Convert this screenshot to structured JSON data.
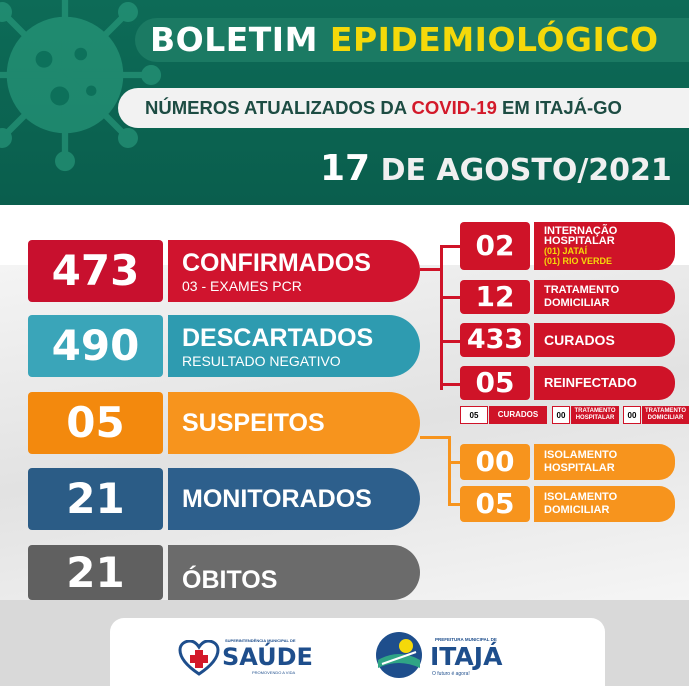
{
  "header": {
    "title_white": "BOLETIM",
    "title_yellow": "EPIDEMIOLÓGICO",
    "subtitle_pre": "NÚMEROS ATUALIZADOS DA",
    "subtitle_red": "COVID-19",
    "subtitle_post": "EM ITAJÁ-GO",
    "date_day": "17",
    "date_rest": "DE AGOSTO/2021"
  },
  "stats": {
    "confirmados": {
      "value": "473",
      "label": "CONFIRMADOS",
      "sub": "03 - EXAMES PCR"
    },
    "descartados": {
      "value": "490",
      "label": "DESCARTADOS",
      "sub": "RESULTADO NEGATIVO"
    },
    "suspeitos": {
      "value": "05",
      "label": "SUSPEITOS"
    },
    "monitorados": {
      "value": "21",
      "label": "MONITORADOS"
    },
    "obitos": {
      "value": "21",
      "label": "ÓBITOS"
    }
  },
  "confirmed_details": {
    "internacao": {
      "value": "02",
      "label1": "INTERNAÇÃO",
      "label2": "HOSPITALAR",
      "note1": "(01) JATAÍ",
      "note2": "(01) RIO VERDE"
    },
    "tratamento": {
      "value": "12",
      "label1": "TRATAMENTO",
      "label2": "DOMICILIAR"
    },
    "curados": {
      "value": "433",
      "label": "CURADOS"
    },
    "reinfectado": {
      "value": "05",
      "label": "REINFECTADO"
    },
    "reinfect_breakdown": {
      "curados_value": "05",
      "curados_label": "CURADOS",
      "hosp_value": "00",
      "hosp_label1": "TRATAMENTO",
      "hosp_label2": "HOSPITALAR",
      "dom_value": "00",
      "dom_label1": "TRATAMENTO",
      "dom_label2": "DOMICILIAR"
    }
  },
  "suspect_details": {
    "iso_hosp": {
      "value": "00",
      "label1": "ISOLAMENTO",
      "label2": "HOSPITALAR"
    },
    "iso_dom": {
      "value": "05",
      "label1": "ISOLAMENTO",
      "label2": "DOMICILIAR"
    }
  },
  "footer": {
    "saude_sup": "SUPERINTENDÊNCIA MUNICIPAL DE",
    "saude": "SAÚDE",
    "saude_sub": "PROMOVENDO A VIDA",
    "itaja_sup": "PREFEITURA MUNICIPAL DE",
    "itaja": "ITAJÁ",
    "itaja_sub": "O futuro é agora!"
  },
  "colors": {
    "header_green": "#0d6b57",
    "red": "#c8102e",
    "teal": "#3aa5b9",
    "orange": "#f7941d",
    "blue": "#2b5c86",
    "gray": "#606060",
    "yellow": "#f5d90a"
  }
}
